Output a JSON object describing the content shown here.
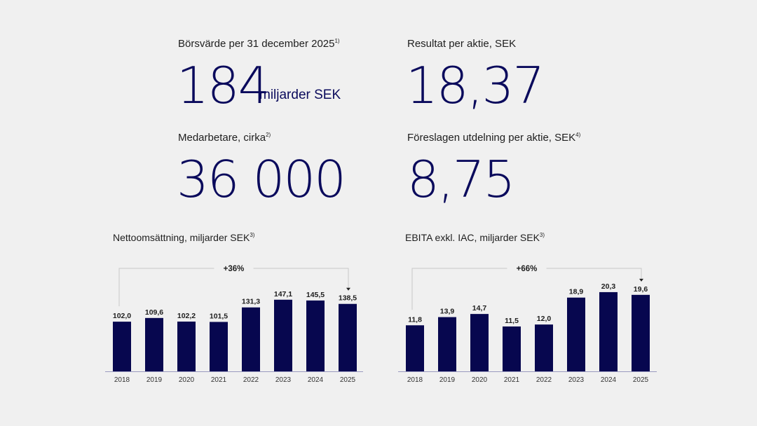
{
  "kpis": [
    {
      "label": "Börsvärde per 31 december 2025",
      "note": "1)",
      "value": "184",
      "unit": "miljarder SEK"
    },
    {
      "label": "Resultat per aktie, SEK",
      "note": "",
      "value": "18,37",
      "unit": ""
    },
    {
      "label": "Medarbetare, cirka",
      "note": "2)",
      "value": "36 000",
      "unit": ""
    },
    {
      "label": "Föreslagen utdelning per aktie, SEK",
      "note": "4)",
      "value": "8,75",
      "unit": ""
    }
  ],
  "colors": {
    "bar": "#07074f",
    "value_text": "#0a0a5c",
    "bracket": "#c8c8c8"
  },
  "chart_data": [
    {
      "type": "bar",
      "title": "Nettoomsättning, miljarder SEK",
      "title_note": "3)",
      "categories": [
        "2018",
        "2019",
        "2020",
        "2021",
        "2022",
        "2023",
        "2024",
        "2025"
      ],
      "values": [
        102.0,
        109.6,
        102.2,
        101.5,
        131.3,
        147.1,
        145.5,
        138.5
      ],
      "labels": [
        "102,0",
        "109,6",
        "102,2",
        "101,5",
        "131,3",
        "147,1",
        "145,5",
        "138,5"
      ],
      "annotation": "+36%",
      "ylim": [
        0,
        160
      ],
      "grid": false
    },
    {
      "type": "bar",
      "title": "EBITA exkl. IAC, miljarder SEK",
      "title_note": "3)",
      "categories": [
        "2018",
        "2019",
        "2020",
        "2021",
        "2022",
        "2023",
        "2024",
        "2025"
      ],
      "values": [
        11.8,
        13.9,
        14.7,
        11.5,
        12.0,
        18.9,
        20.3,
        19.6
      ],
      "labels": [
        "11,8",
        "13,9",
        "14,7",
        "11,5",
        "12,0",
        "18,9",
        "20,3",
        "19,6"
      ],
      "annotation": "+66%",
      "ylim": [
        0,
        23
      ],
      "grid": false
    }
  ]
}
